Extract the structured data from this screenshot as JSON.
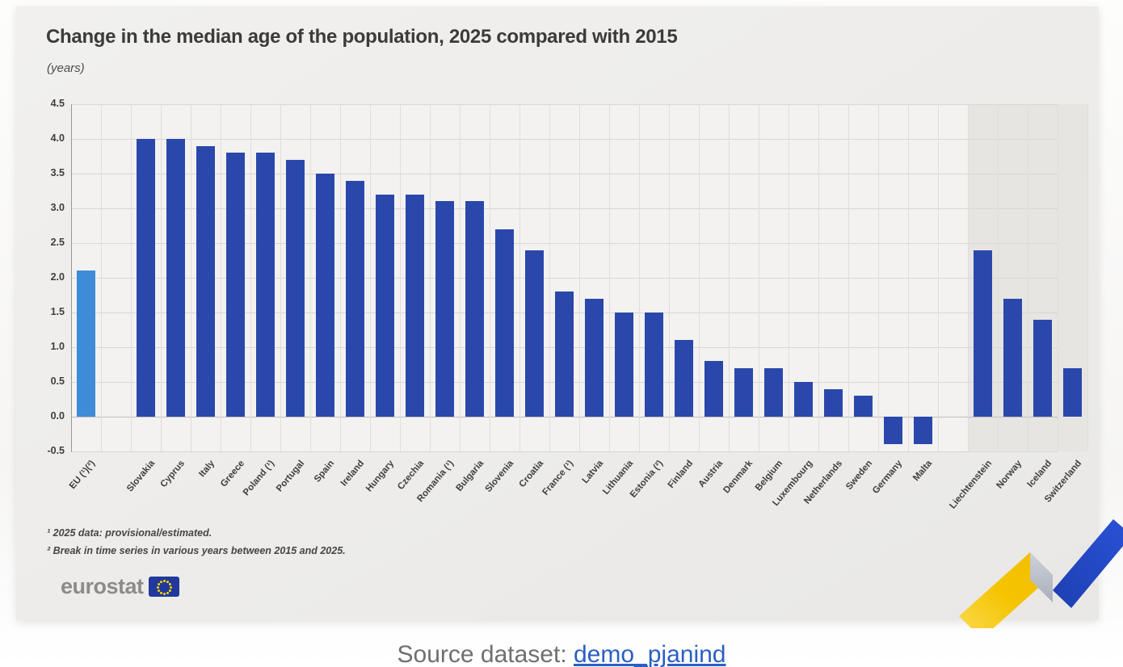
{
  "title": "Change in the median age of the population, 2025 compared with 2015",
  "subtitle": "(years)",
  "footnotes": [
    "¹ 2025 data: provisional/estimated.",
    "² Break in time series in various years between 2015 and 2025."
  ],
  "source": {
    "label": "Source dataset:",
    "link": "demo_pjanind"
  },
  "logo": {
    "text": "eurostat"
  },
  "colors": {
    "bar": "#2a48ab",
    "eu_bar": "#3e8bd8",
    "band": "#e6e5e2",
    "link": "#2a5fc4",
    "logo_yellow": "#f5c400",
    "logo_blue": "#2145c8",
    "logo_gray": "#b9bcc4"
  },
  "chart_data": {
    "type": "bar",
    "title": "Change in the median age of the population, 2025 compared with 2015",
    "unit": "(years)",
    "xlabel": "",
    "ylabel": "years",
    "ylim": [
      -0.5,
      4.5
    ],
    "ytick_step": 0.5,
    "yticks": [
      "4.5",
      "4.0",
      "3.5",
      "3.0",
      "2.5",
      "2.0",
      "1.5",
      "1.0",
      "0.5",
      "0.0",
      "-0.5"
    ],
    "grid": true,
    "legend": false,
    "categories": [
      "EU (¹)(²)",
      "Slovakia",
      "Cyprus",
      "Italy",
      "Greece",
      "Poland (¹)",
      "Portugal",
      "Spain",
      "Ireland",
      "Hungary",
      "Czechia",
      "Romania (¹)",
      "Bulgaria",
      "Slovenia",
      "Croatia",
      "France (¹)",
      "Latvia",
      "Lithuania",
      "Estonia (²)",
      "Finland",
      "Austria",
      "Denmark",
      "Belgium",
      "Luxembourg",
      "Netherlands",
      "Sweden",
      "Germany",
      "Malta",
      "Liechtenstein",
      "Norway",
      "Iceland",
      "Switzerland"
    ],
    "values": [
      2.1,
      4.0,
      4.0,
      3.9,
      3.8,
      3.8,
      3.7,
      3.5,
      3.4,
      3.2,
      3.2,
      3.1,
      3.1,
      2.7,
      2.4,
      1.8,
      1.7,
      1.5,
      1.5,
      1.1,
      0.8,
      0.7,
      0.7,
      0.5,
      0.4,
      0.3,
      -0.4,
      -0.4,
      2.4,
      1.7,
      1.4,
      0.7
    ],
    "highlight_index": 0,
    "gap_before_indices": [
      1,
      28
    ],
    "shaded_from_index": 28
  }
}
